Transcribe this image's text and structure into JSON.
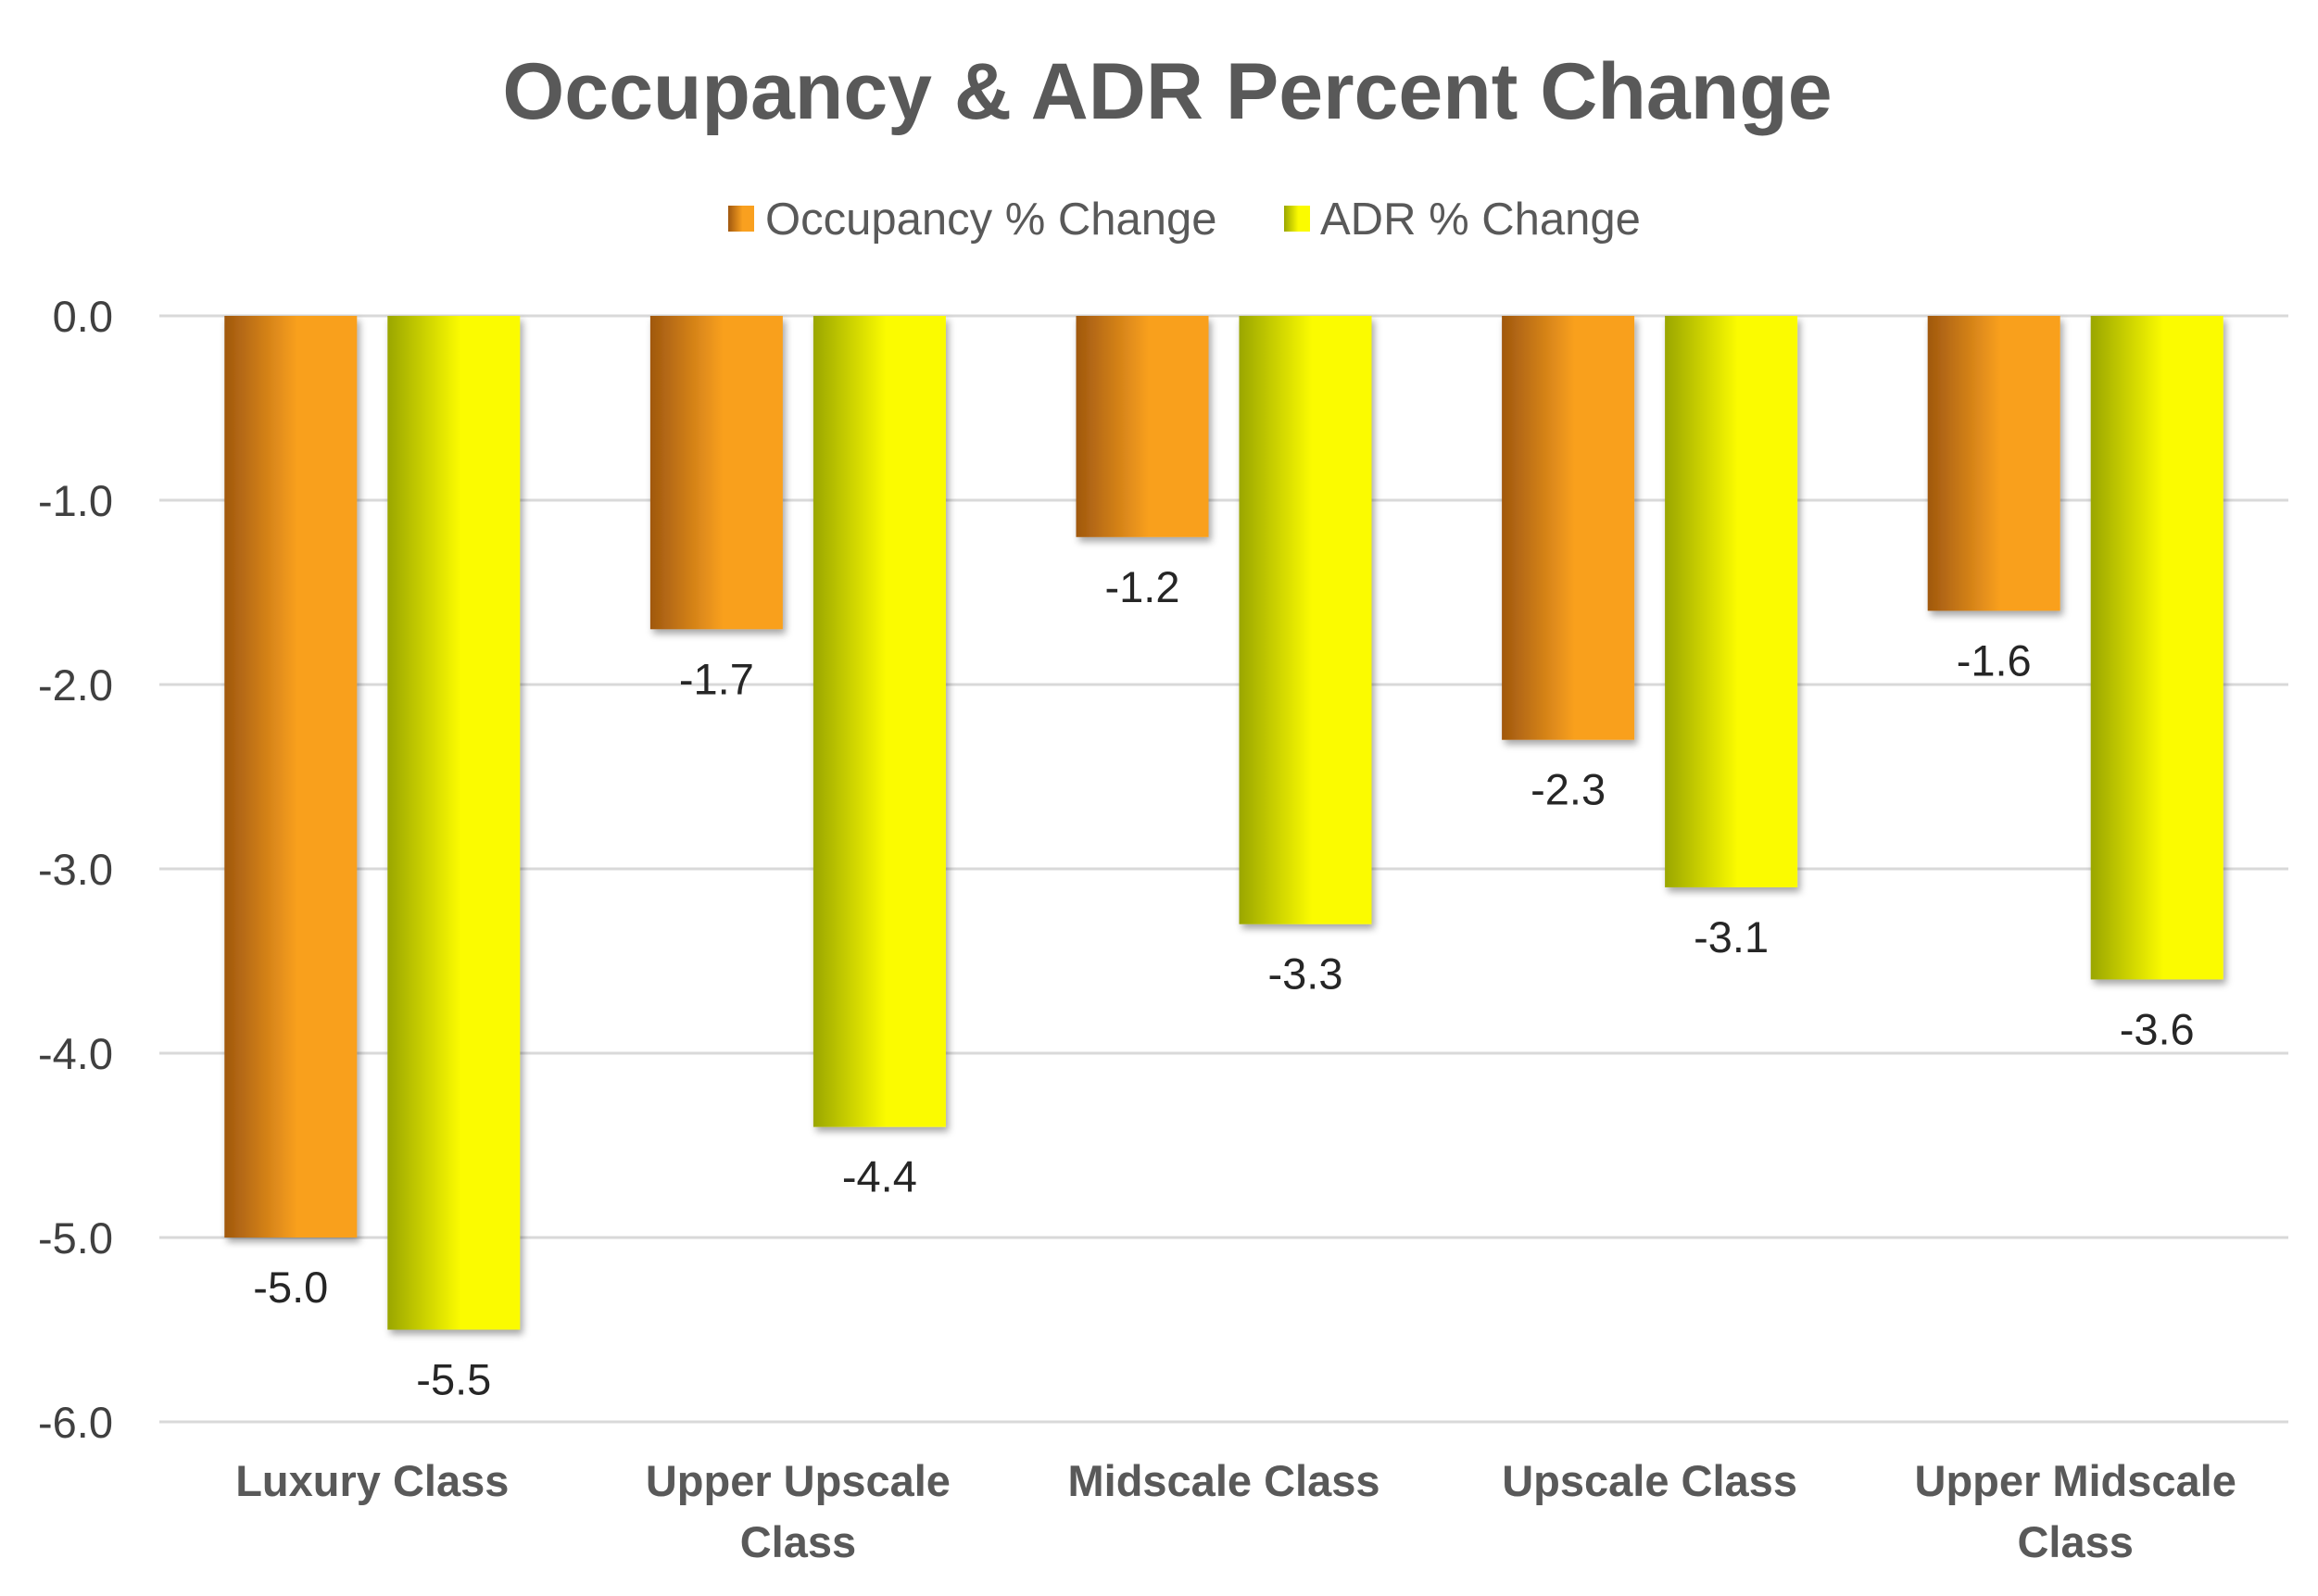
{
  "chart_data": {
    "type": "bar",
    "title": "Occupancy & ADR Percent Change",
    "xlabel": "",
    "ylabel": "",
    "categories": [
      [
        "Luxury Class"
      ],
      [
        "Upper Upscale",
        "Class"
      ],
      [
        "Midscale Class"
      ],
      [
        "Upscale Class"
      ],
      [
        "Upper Midscale",
        "Class"
      ]
    ],
    "series": [
      {
        "name": "Occupancy % Change",
        "values": [
          -5.0,
          -1.7,
          -1.2,
          -2.3,
          -1.6
        ],
        "labels": [
          "-5.0",
          "-1.7",
          "-1.2",
          "-2.3",
          "-1.6"
        ],
        "color_dark": "#a0580f",
        "color_light": "#f9a01f"
      },
      {
        "name": "ADR % Change",
        "values": [
          -5.5,
          -4.4,
          -3.3,
          -3.1,
          -3.6
        ],
        "labels": [
          "-5.5",
          "-4.4",
          "-3.3",
          "-3.1",
          "-3.6"
        ],
        "color_dark": "#9aa600",
        "color_light": "#fbfb00"
      }
    ],
    "ylim": [
      -6.0,
      0.0
    ],
    "yticks": [
      0.0,
      -1.0,
      -2.0,
      -3.0,
      -4.0,
      -5.0,
      -6.0
    ],
    "ytick_labels": [
      "0.0",
      "-1.0",
      "-2.0",
      "-3.0",
      "-4.0",
      "-5.0",
      "-6.0"
    ],
    "grid": true,
    "legend_position": "top-center"
  }
}
